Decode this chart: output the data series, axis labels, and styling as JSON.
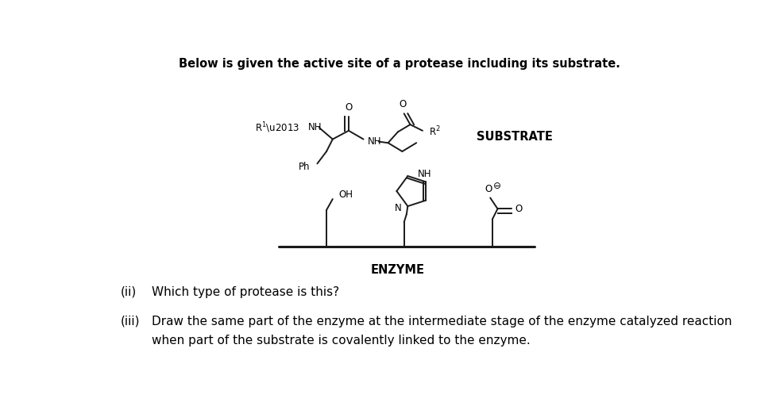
{
  "title": "Below is given the active site of a protease including its substrate.",
  "title_fontsize": 10.5,
  "background_color": "#ffffff",
  "text_color": "#000000",
  "question_i_label": "(ii)",
  "question_i_text": "Which type of protease is this?",
  "question_ii_label": "(iii)",
  "question_ii_text_line1": "Draw the same part of the enzyme at the intermediate stage of the enzyme catalyzed reaction",
  "question_ii_text_line2": "when part of the substrate is covalently linked to the enzyme.",
  "enzyme_label": "ENZYME",
  "substrate_label": "SUBSTRATE",
  "line_color": "#1a1a1a",
  "line_width": 1.4,
  "font_family": "DejaVu Sans"
}
